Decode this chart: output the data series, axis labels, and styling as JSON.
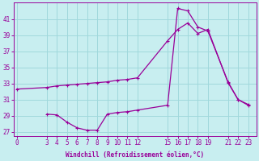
{
  "xlabel": "Windchill (Refroidissement éolien,°C)",
  "background_color": "#c8eef0",
  "grid_color": "#a0d8dc",
  "line_color": "#990099",
  "x_ticks": [
    0,
    3,
    4,
    5,
    6,
    7,
    8,
    9,
    10,
    11,
    12,
    15,
    16,
    17,
    18,
    19,
    21,
    22,
    23
  ],
  "ylim": [
    26.5,
    43
  ],
  "yticks": [
    27,
    29,
    31,
    33,
    35,
    37,
    39,
    41
  ],
  "xlim": [
    -0.3,
    23.8
  ],
  "series1_x": [
    0,
    3,
    4,
    5,
    6,
    7,
    8,
    9,
    10,
    11,
    12,
    15,
    16,
    17,
    18,
    19,
    21,
    22,
    23
  ],
  "series1_y": [
    32.3,
    32.5,
    32.7,
    32.8,
    32.9,
    33.0,
    33.1,
    33.2,
    33.4,
    33.5,
    33.7,
    38.3,
    39.7,
    40.5,
    39.2,
    39.7,
    33.1,
    31.0,
    30.3
  ],
  "series2_x": [
    3,
    4,
    5,
    6,
    7,
    8,
    9,
    10,
    11,
    12,
    15,
    16,
    17,
    18,
    19,
    21,
    22,
    23
  ],
  "series2_y": [
    29.2,
    29.1,
    28.2,
    27.5,
    27.2,
    27.2,
    29.2,
    29.4,
    29.5,
    29.7,
    30.3,
    42.3,
    42.0,
    40.0,
    39.5,
    33.2,
    31.0,
    30.4
  ]
}
